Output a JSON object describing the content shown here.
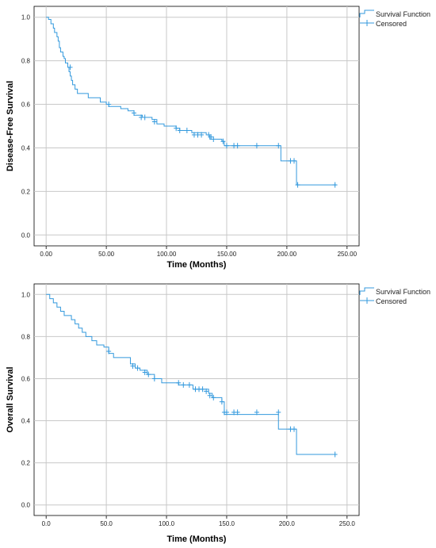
{
  "chart_data": [
    {
      "type": "line",
      "title": "",
      "xlabel": "Time (Months)",
      "ylabel": "Disease-Free Survival",
      "xlim": [
        -10,
        260
      ],
      "ylim": [
        -0.05,
        1.05
      ],
      "x_ticks": [
        0,
        50,
        100,
        150,
        200,
        250
      ],
      "x_tick_labels": [
        "0.00",
        "50.00",
        "100.00",
        "150.00",
        "200.00",
        "250.00"
      ],
      "y_ticks": [
        0,
        0.2,
        0.4,
        0.6,
        0.8,
        1.0
      ],
      "y_tick_labels": [
        "0.0",
        "0.2",
        "0.4",
        "0.6",
        "0.8",
        "1.0"
      ],
      "grid": true,
      "legend": {
        "placement": "top-right",
        "entries": [
          "Survival Function",
          "Censored"
        ]
      },
      "series": [
        {
          "name": "Survival Function",
          "color": "#3399dd",
          "steps": [
            [
              0,
              1.0
            ],
            [
              2,
              0.99
            ],
            [
              4,
              0.97
            ],
            [
              6,
              0.95
            ],
            [
              7,
              0.93
            ],
            [
              9,
              0.91
            ],
            [
              10,
              0.89
            ],
            [
              11,
              0.86
            ],
            [
              12,
              0.84
            ],
            [
              14,
              0.82
            ],
            [
              15,
              0.81
            ],
            [
              16,
              0.79
            ],
            [
              18,
              0.77
            ],
            [
              19,
              0.75
            ],
            [
              20,
              0.73
            ],
            [
              21,
              0.71
            ],
            [
              22,
              0.69
            ],
            [
              24,
              0.67
            ],
            [
              26,
              0.65
            ],
            [
              35,
              0.63
            ],
            [
              45,
              0.61
            ],
            [
              50,
              0.6
            ],
            [
              52,
              0.59
            ],
            [
              62,
              0.58
            ],
            [
              68,
              0.57
            ],
            [
              73,
              0.55
            ],
            [
              80,
              0.54
            ],
            [
              88,
              0.53
            ],
            [
              92,
              0.51
            ],
            [
              98,
              0.5
            ],
            [
              108,
              0.49
            ],
            [
              111,
              0.48
            ],
            [
              121,
              0.47
            ],
            [
              133,
              0.46
            ],
            [
              136,
              0.44
            ],
            [
              146,
              0.43
            ],
            [
              148,
              0.41
            ],
            [
              195,
              0.34
            ],
            [
              208,
              0.23
            ],
            [
              241,
              0.23
            ]
          ],
          "censored": [
            [
              20,
              0.77
            ],
            [
              52,
              0.6
            ],
            [
              73,
              0.56
            ],
            [
              79,
              0.54
            ],
            [
              82,
              0.54
            ],
            [
              90,
              0.52
            ],
            [
              108,
              0.49
            ],
            [
              111,
              0.48
            ],
            [
              117,
              0.48
            ],
            [
              123,
              0.46
            ],
            [
              126,
              0.46
            ],
            [
              129,
              0.46
            ],
            [
              135,
              0.46
            ],
            [
              137,
              0.45
            ],
            [
              139,
              0.44
            ],
            [
              147,
              0.43
            ],
            [
              150,
              0.41
            ],
            [
              156,
              0.41
            ],
            [
              159,
              0.41
            ],
            [
              175,
              0.41
            ],
            [
              193,
              0.41
            ],
            [
              203,
              0.34
            ],
            [
              206,
              0.34
            ],
            [
              209,
              0.23
            ],
            [
              240,
              0.23
            ]
          ]
        }
      ]
    },
    {
      "type": "line",
      "title": "",
      "xlabel": "Time (Months)",
      "ylabel": "Overall Survival",
      "xlim": [
        -10,
        260
      ],
      "ylim": [
        -0.05,
        1.05
      ],
      "x_ticks": [
        0,
        50,
        100,
        150,
        200,
        250
      ],
      "x_tick_labels": [
        "0.0",
        "50.0",
        "100.0",
        "150.0",
        "200.0",
        "250.0"
      ],
      "y_ticks": [
        0,
        0.2,
        0.4,
        0.6,
        0.8,
        1.0
      ],
      "y_tick_labels": [
        "0.0",
        "0.2",
        "0.4",
        "0.6",
        "0.8",
        "1.0"
      ],
      "grid": true,
      "legend": {
        "placement": "top-right",
        "entries": [
          "Survival Function",
          "Censored"
        ]
      },
      "series": [
        {
          "name": "Survival Function",
          "color": "#3399dd",
          "steps": [
            [
              0,
              1.0
            ],
            [
              3,
              0.98
            ],
            [
              6,
              0.96
            ],
            [
              9,
              0.94
            ],
            [
              12,
              0.92
            ],
            [
              15,
              0.9
            ],
            [
              21,
              0.88
            ],
            [
              24,
              0.86
            ],
            [
              27,
              0.84
            ],
            [
              30,
              0.82
            ],
            [
              33,
              0.8
            ],
            [
              38,
              0.78
            ],
            [
              42,
              0.76
            ],
            [
              48,
              0.75
            ],
            [
              52,
              0.72
            ],
            [
              56,
              0.7
            ],
            [
              70,
              0.67
            ],
            [
              74,
              0.65
            ],
            [
              78,
              0.64
            ],
            [
              84,
              0.62
            ],
            [
              90,
              0.6
            ],
            [
              96,
              0.58
            ],
            [
              110,
              0.57
            ],
            [
              122,
              0.55
            ],
            [
              135,
              0.53
            ],
            [
              138,
              0.51
            ],
            [
              146,
              0.49
            ],
            [
              148,
              0.43
            ],
            [
              193,
              0.36
            ],
            [
              208,
              0.24
            ],
            [
              241,
              0.24
            ]
          ],
          "censored": [
            [
              52,
              0.73
            ],
            [
              72,
              0.66
            ],
            [
              76,
              0.65
            ],
            [
              82,
              0.63
            ],
            [
              85,
              0.62
            ],
            [
              90,
              0.6
            ],
            [
              110,
              0.58
            ],
            [
              114,
              0.57
            ],
            [
              119,
              0.57
            ],
            [
              124,
              0.55
            ],
            [
              127,
              0.55
            ],
            [
              130,
              0.55
            ],
            [
              133,
              0.54
            ],
            [
              136,
              0.52
            ],
            [
              139,
              0.51
            ],
            [
              146,
              0.49
            ],
            [
              148,
              0.44
            ],
            [
              150,
              0.44
            ],
            [
              156,
              0.44
            ],
            [
              159,
              0.44
            ],
            [
              175,
              0.44
            ],
            [
              193,
              0.44
            ],
            [
              203,
              0.36
            ],
            [
              206,
              0.36
            ],
            [
              240,
              0.24
            ]
          ]
        }
      ]
    }
  ]
}
